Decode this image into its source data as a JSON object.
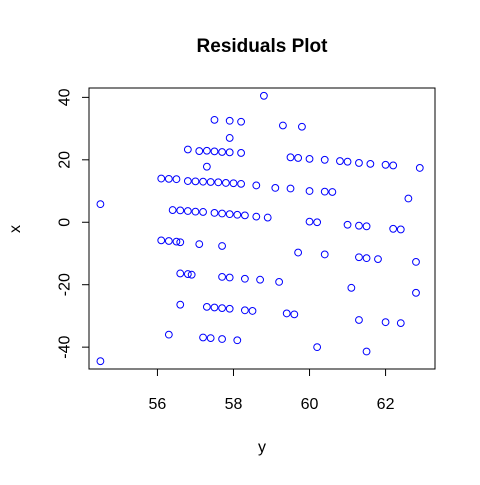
{
  "chart_data": {
    "type": "scatter",
    "title": "Residuals Plot",
    "xlabel": "y",
    "ylabel": "x",
    "xlim": [
      54.2,
      63.3
    ],
    "ylim": [
      -47,
      43
    ],
    "xticks": [
      56,
      58,
      60,
      62
    ],
    "yticks": [
      -40,
      -20,
      0,
      20,
      40
    ],
    "grid": false,
    "legend": "none",
    "point_color": "#0000ff",
    "points": [
      {
        "x": 54.5,
        "y": 5.8
      },
      {
        "x": 54.5,
        "y": -44.5
      },
      {
        "x": 56.1,
        "y": 14.0
      },
      {
        "x": 56.3,
        "y": 13.9
      },
      {
        "x": 56.5,
        "y": 13.8
      },
      {
        "x": 56.8,
        "y": 23.3
      },
      {
        "x": 56.8,
        "y": 13.2
      },
      {
        "x": 57.0,
        "y": 13.1
      },
      {
        "x": 57.1,
        "y": 22.8
      },
      {
        "x": 57.2,
        "y": 13.0
      },
      {
        "x": 57.3,
        "y": 22.9
      },
      {
        "x": 57.4,
        "y": 12.9
      },
      {
        "x": 57.5,
        "y": 22.7
      },
      {
        "x": 57.6,
        "y": 12.8
      },
      {
        "x": 57.7,
        "y": 22.5
      },
      {
        "x": 57.8,
        "y": 12.6
      },
      {
        "x": 57.9,
        "y": 22.4
      },
      {
        "x": 58.0,
        "y": 12.5
      },
      {
        "x": 58.2,
        "y": 12.3
      },
      {
        "x": 58.2,
        "y": 22.2
      },
      {
        "x": 57.3,
        "y": 17.8
      },
      {
        "x": 57.5,
        "y": 32.8
      },
      {
        "x": 57.9,
        "y": 32.5
      },
      {
        "x": 57.9,
        "y": 27.0
      },
      {
        "x": 58.2,
        "y": 32.2
      },
      {
        "x": 58.6,
        "y": 11.8
      },
      {
        "x": 58.8,
        "y": 40.5
      },
      {
        "x": 59.3,
        "y": 31.0
      },
      {
        "x": 59.8,
        "y": 30.6
      },
      {
        "x": 59.1,
        "y": 11.0
      },
      {
        "x": 59.5,
        "y": 10.8
      },
      {
        "x": 59.5,
        "y": 20.8
      },
      {
        "x": 59.7,
        "y": 20.6
      },
      {
        "x": 60.0,
        "y": 20.3
      },
      {
        "x": 60.0,
        "y": 10.0
      },
      {
        "x": 60.4,
        "y": 20.0
      },
      {
        "x": 60.4,
        "y": 9.8
      },
      {
        "x": 60.6,
        "y": 9.7
      },
      {
        "x": 60.8,
        "y": 19.6
      },
      {
        "x": 61.0,
        "y": 19.4
      },
      {
        "x": 61.3,
        "y": 19.0
      },
      {
        "x": 61.6,
        "y": 18.7
      },
      {
        "x": 62.0,
        "y": 18.4
      },
      {
        "x": 62.2,
        "y": 18.2
      },
      {
        "x": 62.9,
        "y": 17.4
      },
      {
        "x": 62.6,
        "y": 7.6
      },
      {
        "x": 56.4,
        "y": 3.9
      },
      {
        "x": 56.6,
        "y": 3.8
      },
      {
        "x": 56.8,
        "y": 3.6
      },
      {
        "x": 57.0,
        "y": 3.4
      },
      {
        "x": 57.2,
        "y": 3.3
      },
      {
        "x": 57.5,
        "y": 3.0
      },
      {
        "x": 57.7,
        "y": 2.8
      },
      {
        "x": 57.9,
        "y": 2.6
      },
      {
        "x": 58.1,
        "y": 2.4
      },
      {
        "x": 58.3,
        "y": 2.2
      },
      {
        "x": 58.6,
        "y": 1.8
      },
      {
        "x": 58.9,
        "y": 1.5
      },
      {
        "x": 60.0,
        "y": 0.2
      },
      {
        "x": 60.2,
        "y": 0.0
      },
      {
        "x": 61.0,
        "y": -0.8
      },
      {
        "x": 61.3,
        "y": -1.1
      },
      {
        "x": 61.5,
        "y": -1.3
      },
      {
        "x": 62.2,
        "y": -2.1
      },
      {
        "x": 62.4,
        "y": -2.3
      },
      {
        "x": 56.1,
        "y": -5.8
      },
      {
        "x": 56.3,
        "y": -6.0
      },
      {
        "x": 56.5,
        "y": -6.2
      },
      {
        "x": 56.6,
        "y": -6.4
      },
      {
        "x": 57.1,
        "y": -7.0
      },
      {
        "x": 57.7,
        "y": -7.6
      },
      {
        "x": 59.7,
        "y": -9.7
      },
      {
        "x": 60.4,
        "y": -10.3
      },
      {
        "x": 61.3,
        "y": -11.2
      },
      {
        "x": 61.5,
        "y": -11.5
      },
      {
        "x": 61.8,
        "y": -11.8
      },
      {
        "x": 62.8,
        "y": -12.7
      },
      {
        "x": 56.6,
        "y": -16.4
      },
      {
        "x": 56.8,
        "y": -16.6
      },
      {
        "x": 56.9,
        "y": -16.8
      },
      {
        "x": 57.7,
        "y": -17.5
      },
      {
        "x": 57.9,
        "y": -17.7
      },
      {
        "x": 58.3,
        "y": -18.1
      },
      {
        "x": 58.7,
        "y": -18.4
      },
      {
        "x": 59.2,
        "y": -19.1
      },
      {
        "x": 61.1,
        "y": -21.0
      },
      {
        "x": 62.8,
        "y": -22.6
      },
      {
        "x": 56.6,
        "y": -26.4
      },
      {
        "x": 57.3,
        "y": -27.1
      },
      {
        "x": 57.5,
        "y": -27.3
      },
      {
        "x": 57.7,
        "y": -27.5
      },
      {
        "x": 57.9,
        "y": -27.7
      },
      {
        "x": 58.3,
        "y": -28.2
      },
      {
        "x": 58.5,
        "y": -28.4
      },
      {
        "x": 59.4,
        "y": -29.2
      },
      {
        "x": 59.6,
        "y": -29.5
      },
      {
        "x": 61.3,
        "y": -31.3
      },
      {
        "x": 62.0,
        "y": -32.0
      },
      {
        "x": 62.4,
        "y": -32.3
      },
      {
        "x": 56.3,
        "y": -36.0
      },
      {
        "x": 57.2,
        "y": -36.9
      },
      {
        "x": 57.4,
        "y": -37.1
      },
      {
        "x": 57.7,
        "y": -37.4
      },
      {
        "x": 58.1,
        "y": -37.8
      },
      {
        "x": 60.2,
        "y": -40.0
      },
      {
        "x": 61.5,
        "y": -41.4
      }
    ]
  }
}
